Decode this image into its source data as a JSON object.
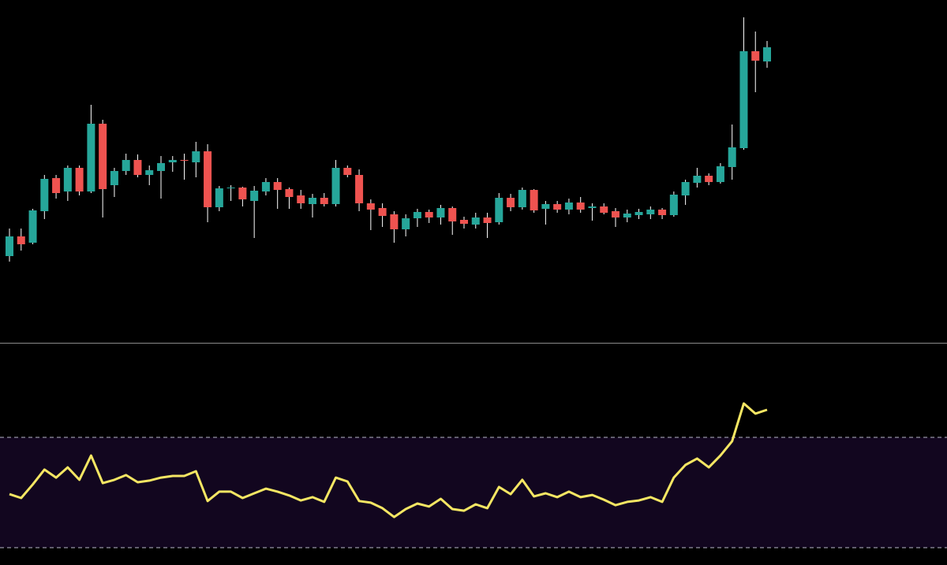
{
  "chart_data": [
    {
      "type": "candlestick",
      "ylim": [
        0,
        435
      ],
      "up_color": "#26a69a",
      "down_color": "#ef5350",
      "wick_color": "#ffffff",
      "open": [
        110,
        135,
        127,
        167,
        209,
        192,
        222,
        192,
        278,
        200,
        218,
        232,
        213,
        218,
        229,
        232,
        229,
        243,
        172,
        196,
        197,
        180,
        192,
        204,
        195,
        187,
        176,
        184,
        176,
        222,
        213,
        177,
        171,
        163,
        144,
        158,
        166,
        159,
        171,
        156,
        150,
        159,
        153,
        184,
        172,
        194,
        170,
        176,
        169,
        178,
        171,
        173,
        167,
        159,
        162,
        163,
        169,
        162,
        187,
        203,
        212,
        204,
        223,
        247,
        370,
        357
      ],
      "high": [
        145,
        145,
        170,
        213,
        213,
        225,
        225,
        302,
        283,
        222,
        240,
        239,
        225,
        237,
        237,
        240,
        255,
        252,
        199,
        200,
        198,
        199,
        209,
        209,
        197,
        194,
        189,
        190,
        232,
        225,
        220,
        182,
        177,
        167,
        163,
        170,
        169,
        175,
        173,
        160,
        165,
        165,
        190,
        189,
        197,
        195,
        180,
        180,
        183,
        185,
        177,
        177,
        171,
        169,
        170,
        173,
        171,
        192,
        207,
        222,
        215,
        228,
        277,
        413,
        395,
        383
      ],
      "low": [
        103,
        117,
        125,
        157,
        183,
        180,
        187,
        190,
        159,
        185,
        213,
        210,
        200,
        183,
        217,
        207,
        210,
        153,
        167,
        180,
        173,
        133,
        187,
        170,
        170,
        170,
        159,
        173,
        173,
        210,
        167,
        143,
        147,
        127,
        135,
        147,
        152,
        150,
        137,
        145,
        145,
        133,
        150,
        167,
        169,
        165,
        150,
        165,
        163,
        165,
        155,
        163,
        147,
        153,
        157,
        157,
        157,
        160,
        175,
        197,
        200,
        202,
        207,
        245,
        318,
        349
      ],
      "close": [
        135,
        125,
        168,
        208,
        190,
        222,
        192,
        278,
        195,
        218,
        232,
        213,
        219,
        228,
        232,
        231,
        243,
        172,
        196,
        197,
        182,
        193,
        204,
        194,
        185,
        177,
        184,
        176,
        222,
        213,
        177,
        169,
        161,
        144,
        158,
        166,
        159,
        171,
        154,
        151,
        159,
        152,
        184,
        172,
        194,
        168,
        176,
        169,
        178,
        169,
        173,
        165,
        159,
        164,
        166,
        169,
        162,
        188,
        204,
        212,
        204,
        224,
        248,
        370,
        358,
        375
      ]
    },
    {
      "type": "line",
      "ylim": [
        23.7,
        104.3
      ],
      "color": "#f5e663",
      "bands": [
        30,
        70
      ],
      "band_fill": "#12061f",
      "values": [
        49.4,
        48.0,
        52.9,
        58.3,
        55.4,
        59.1,
        54.6,
        63.4,
        53.4,
        54.6,
        56.3,
        53.7,
        54.3,
        55.4,
        56.0,
        56.0,
        57.7,
        46.9,
        50.3,
        50.3,
        48.0,
        49.7,
        51.4,
        50.3,
        48.9,
        47.1,
        48.3,
        46.6,
        55.4,
        54.0,
        46.9,
        46.3,
        44.3,
        41.1,
        44.0,
        46.0,
        44.9,
        47.7,
        44.0,
        43.4,
        45.7,
        44.3,
        52.0,
        49.4,
        54.6,
        48.6,
        49.7,
        48.3,
        50.3,
        48.3,
        49.1,
        47.4,
        45.4,
        46.6,
        47.1,
        48.3,
        46.6,
        55.4,
        60.0,
        62.3,
        59.1,
        63.4,
        68.6,
        82.3,
        78.6,
        80.0
      ]
    }
  ]
}
